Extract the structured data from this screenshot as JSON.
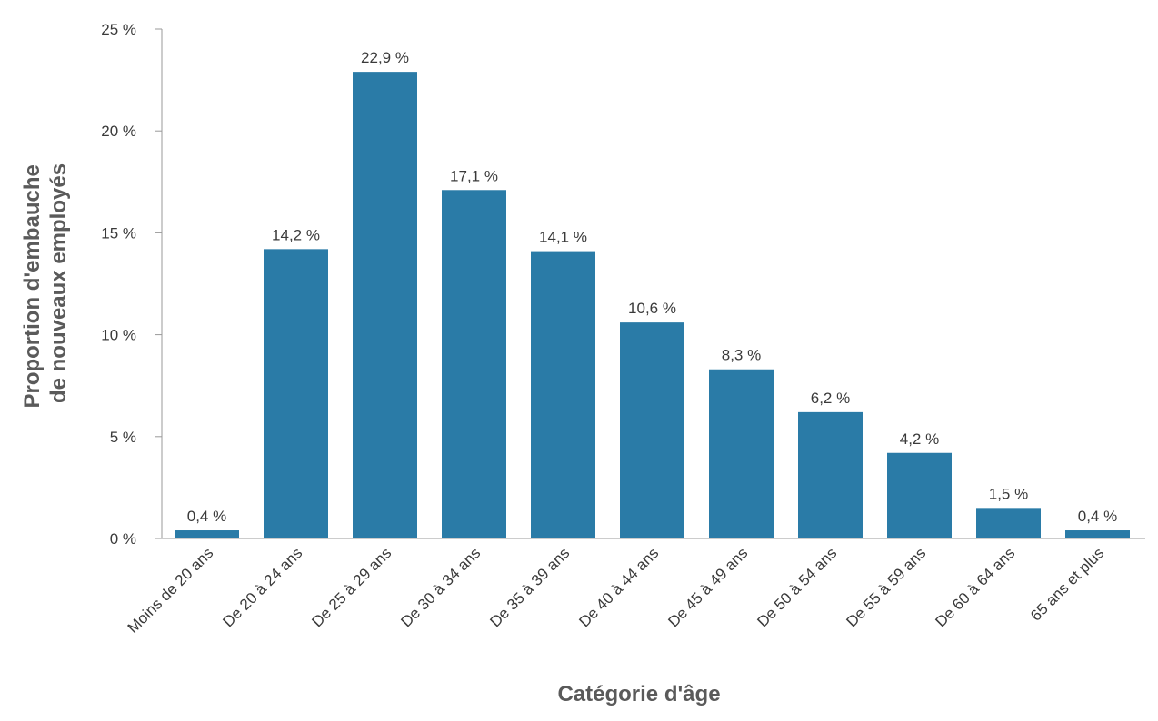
{
  "chart_data": {
    "type": "bar",
    "categories": [
      "Moins de 20 ans",
      "De 20 à 24 ans",
      "De 25 à 29 ans",
      "De 30 à 34 ans",
      "De 35 à 39 ans",
      "De 40 à 44 ans",
      "De 45 à 49 ans",
      "De 50 à 54 ans",
      "De 55 à 59 ans",
      "De 60 à 64 ans",
      "65 ans et plus"
    ],
    "values": [
      0.4,
      14.2,
      22.9,
      17.1,
      14.1,
      10.6,
      8.3,
      6.2,
      4.2,
      1.5,
      0.4
    ],
    "data_labels": [
      "0,4 %",
      "14,2 %",
      "22,9 %",
      "17,1 %",
      "14,1 %",
      "10,6 %",
      "8,3 %",
      "6,2 %",
      "4,2 %",
      "1,5 %",
      "0,4 %"
    ],
    "yticks": [
      0,
      5,
      10,
      15,
      20,
      25
    ],
    "ytick_labels": [
      "0 %",
      "5 %",
      "10 %",
      "15 %",
      "20 %",
      "25 %"
    ],
    "ylim": [
      0,
      25
    ],
    "xlabel": "Catégorie d'âge",
    "ylabel_lines": [
      "Proportion d'embauche",
      "de nouveaux employés"
    ],
    "bar_color": "#2a7ba7",
    "grid": false,
    "legend": "none"
  }
}
